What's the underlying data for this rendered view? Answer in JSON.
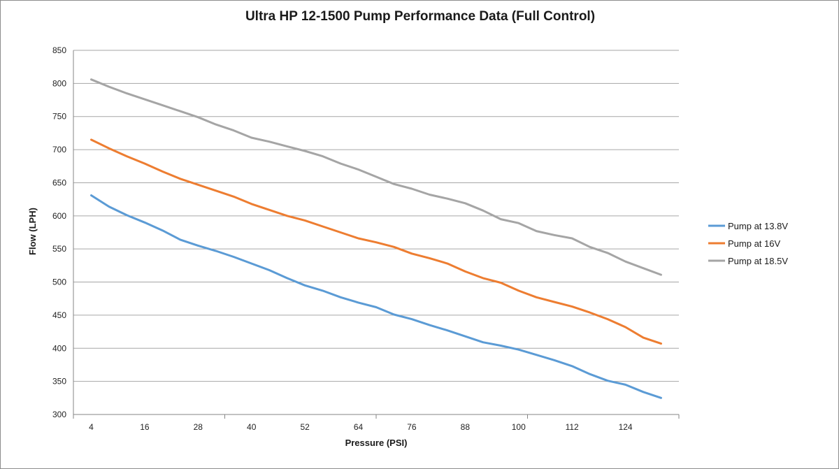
{
  "chart_data": {
    "type": "line",
    "title": "Ultra HP 12-1500 Pump Performance Data (Full Control)",
    "xlabel": "Pressure (PSI)",
    "ylabel": "Flow (LPH)",
    "x_tick_labels": [
      "4",
      "16",
      "28",
      "40",
      "52",
      "64",
      "76",
      "88",
      "100",
      "112",
      "124"
    ],
    "x": [
      4,
      8,
      12,
      16,
      20,
      24,
      28,
      32,
      36,
      40,
      44,
      48,
      52,
      56,
      60,
      64,
      68,
      72,
      76,
      80,
      84,
      88,
      92,
      96,
      100,
      104,
      108,
      112,
      116,
      120,
      124,
      128,
      132
    ],
    "ylim": [
      300,
      850
    ],
    "y_ticks": [
      300,
      350,
      400,
      450,
      500,
      550,
      600,
      650,
      700,
      750,
      800,
      850
    ],
    "grid": "horizontal",
    "legend": "right",
    "series": [
      {
        "name": "Pump at 13.8V",
        "color": "#5b9bd5",
        "values": [
          631,
          614,
          601,
          590,
          578,
          564,
          555,
          547,
          538,
          528,
          518,
          506,
          495,
          487,
          477,
          469,
          462,
          451,
          444,
          435,
          427,
          418,
          409,
          404,
          398,
          390,
          382,
          373,
          361,
          351,
          345,
          334,
          325
        ]
      },
      {
        "name": "Pump at 16V",
        "color": "#ed7d31",
        "values": [
          715,
          702,
          690,
          679,
          667,
          656,
          647,
          638,
          629,
          618,
          609,
          600,
          593,
          584,
          575,
          566,
          560,
          553,
          543,
          536,
          528,
          516,
          506,
          499,
          487,
          477,
          470,
          463,
          454,
          444,
          432,
          416,
          407
        ]
      },
      {
        "name": "Pump at 18.5V",
        "color": "#a5a5a5",
        "values": [
          806,
          795,
          785,
          776,
          767,
          758,
          749,
          738,
          729,
          718,
          712,
          705,
          698,
          690,
          679,
          670,
          659,
          648,
          641,
          632,
          626,
          619,
          608,
          595,
          589,
          577,
          571,
          566,
          553,
          544,
          531,
          521,
          511
        ]
      }
    ]
  }
}
